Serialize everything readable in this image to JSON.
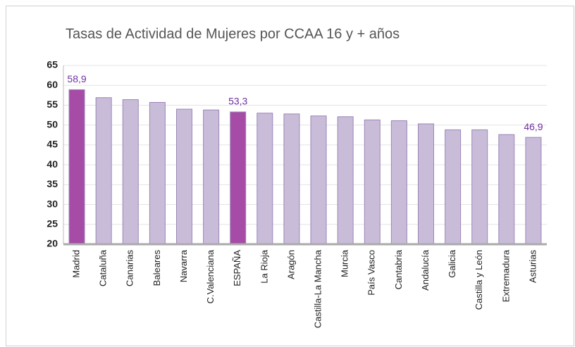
{
  "chart_data": {
    "type": "bar",
    "title": "Tasas de Actividad de Mujeres por CCAA 16 y + años",
    "categories": [
      "Madrid",
      "Cataluña",
      "Canarias",
      "Baleares",
      "Navarra",
      "C.Valenciana",
      "ESPAÑA",
      "La Rioja",
      "Aragón",
      "Castilla-La Mancha",
      "Murcia",
      "País Vasco",
      "Cantabria",
      "Andalucía",
      "Galicia",
      "Castilla y León",
      "Extremadura",
      "Asturias"
    ],
    "values": [
      58.9,
      56.9,
      56.4,
      55.7,
      54.0,
      53.8,
      53.3,
      53.0,
      52.8,
      52.3,
      52.1,
      51.3,
      51.1,
      50.3,
      48.8,
      48.8,
      47.6,
      46.9
    ],
    "value_labels": [
      "58,9",
      null,
      null,
      null,
      null,
      null,
      "53,3",
      null,
      null,
      null,
      null,
      null,
      null,
      null,
      null,
      null,
      null,
      "46,9"
    ],
    "colors": [
      "#a64ca6",
      "#c9bcd9",
      "#c9bcd9",
      "#c9bcd9",
      "#c9bcd9",
      "#c9bcd9",
      "#a64ca6",
      "#c9bcd9",
      "#c9bcd9",
      "#c9bcd9",
      "#c9bcd9",
      "#c9bcd9",
      "#c9bcd9",
      "#c9bcd9",
      "#c9bcd9",
      "#c9bcd9",
      "#c9bcd9",
      "#c9bcd9"
    ],
    "label_color": "#7030a0",
    "ylim": [
      20,
      65
    ],
    "yticks": [
      20,
      25,
      30,
      35,
      40,
      45,
      50,
      55,
      60,
      65
    ],
    "grid": true
  }
}
